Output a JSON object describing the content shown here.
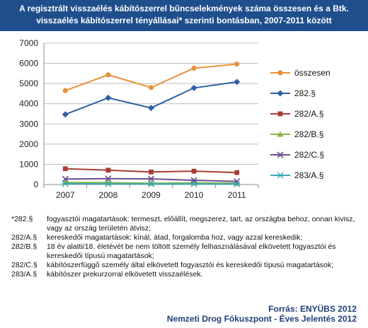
{
  "header": {
    "title_line1": "A regisztrált visszaélés kábítószerrel bűncselekmények száma összesen és a Btk.",
    "title_line2": "visszaélés kábítószerrel tényállásai* szerinti bontásban, 2007-2011 között"
  },
  "chart_data": {
    "type": "line",
    "title": "A regisztrált visszaélés kábítószerrel bűncselekmények száma összesen és a Btk. visszaélés kábítószerrel tényállásai* szerinti bontásban, 2007-2011 között",
    "categories": [
      "2007",
      "2008",
      "2009",
      "2010",
      "2011"
    ],
    "ylim": [
      0,
      7000
    ],
    "yticks": [
      0,
      1000,
      2000,
      3000,
      4000,
      5000,
      6000,
      7000
    ],
    "grid": true,
    "legend_position": "right",
    "series": [
      {
        "name": "összesen",
        "values": [
          4650,
          5430,
          4800,
          5760,
          5960
        ],
        "color": "#e8913a",
        "marker": "circle"
      },
      {
        "name": "282.§",
        "values": [
          3470,
          4290,
          3790,
          4780,
          5080
        ],
        "color": "#2e5fa3",
        "marker": "diamond"
      },
      {
        "name": "282/A.§",
        "values": [
          780,
          710,
          620,
          660,
          590
        ],
        "color": "#a83c33",
        "marker": "square"
      },
      {
        "name": "282/B.§",
        "values": [
          100,
          90,
          60,
          80,
          60
        ],
        "color": "#8fb33f",
        "marker": "triangle"
      },
      {
        "name": "282/C.§",
        "values": [
          270,
          290,
          280,
          210,
          150
        ],
        "color": "#6b4c8a",
        "marker": "x"
      },
      {
        "name": "283/A.§",
        "values": [
          40,
          30,
          25,
          30,
          20
        ],
        "color": "#3aa7b8",
        "marker": "star"
      }
    ]
  },
  "notes": [
    {
      "code": "*282.§",
      "text": "fogyasztói magatartások: termeszt, előállít, megszerez, tart, az országba behoz, onnan kivisz, vagy az ország területén átvisz;"
    },
    {
      "code": "282/A.§",
      "text": "kereskedői magatartások: kínál, átad, forgalomba hoz, vagy azzal kereskedik;"
    },
    {
      "code": "282/B.§",
      "text": "18 év alatti/18. életévét be nem töltött személy felhasználásával elkövetett fogyasztói és kereskedői típusú magatartások;"
    },
    {
      "code": "282/C.§",
      "text": "kábítószerfüggő személy által elkövetett fogyasztói és kereskedői típusú magatartások;"
    },
    {
      "code": "283/A.§",
      "text": "kábítószer prekurzorral elkövetett visszaélések."
    }
  ],
  "source": {
    "line1": "Forrás: ENYÜBS 2012",
    "line2": "Nemzeti Drog Fókuszpont - Éves Jelentés 2012"
  }
}
